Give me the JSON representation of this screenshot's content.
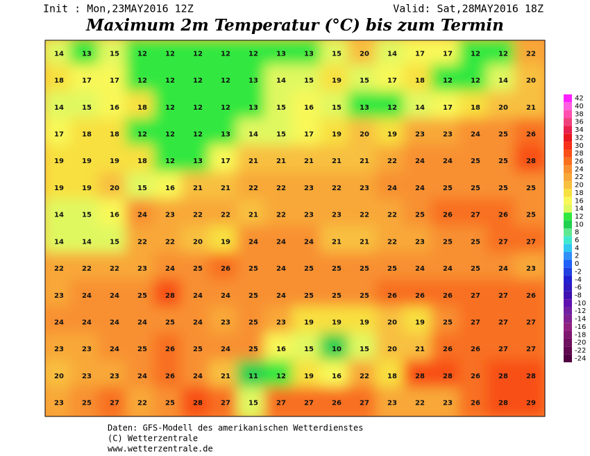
{
  "header": {
    "init": "Init : Mon,23MAY2016 12Z",
    "valid": "Valid: Sat,28MAY2016 18Z",
    "title": "Maximum 2m Temperatur (°C) bis zum Termin"
  },
  "map": {
    "values": [
      [
        14,
        13,
        15,
        12,
        12,
        12,
        12,
        12,
        13,
        13,
        15,
        20,
        14,
        17,
        17,
        12,
        12,
        22
      ],
      [
        18,
        17,
        17,
        12,
        12,
        12,
        12,
        13,
        14,
        15,
        19,
        15,
        17,
        18,
        12,
        12,
        14,
        20
      ],
      [
        14,
        15,
        16,
        18,
        12,
        12,
        12,
        13,
        15,
        16,
        15,
        13,
        12,
        14,
        17,
        18,
        20,
        21
      ],
      [
        17,
        18,
        18,
        12,
        12,
        12,
        13,
        14,
        15,
        17,
        19,
        20,
        19,
        23,
        23,
        24,
        25,
        26
      ],
      [
        19,
        19,
        19,
        18,
        12,
        13,
        17,
        21,
        21,
        21,
        21,
        21,
        22,
        24,
        24,
        25,
        25,
        28
      ],
      [
        19,
        19,
        20,
        15,
        16,
        21,
        21,
        22,
        22,
        23,
        22,
        23,
        24,
        24,
        25,
        25,
        25,
        25
      ],
      [
        14,
        15,
        16,
        24,
        23,
        22,
        22,
        21,
        22,
        23,
        23,
        22,
        22,
        25,
        26,
        27,
        26,
        25
      ],
      [
        14,
        14,
        15,
        22,
        22,
        20,
        19,
        24,
        24,
        24,
        21,
        21,
        22,
        23,
        25,
        25,
        27,
        27
      ],
      [
        22,
        22,
        22,
        23,
        24,
        25,
        26,
        25,
        24,
        25,
        25,
        25,
        25,
        24,
        24,
        25,
        24,
        23
      ],
      [
        23,
        24,
        24,
        25,
        28,
        24,
        24,
        25,
        24,
        25,
        25,
        25,
        26,
        26,
        26,
        27,
        27,
        26
      ],
      [
        24,
        24,
        24,
        24,
        25,
        24,
        23,
        25,
        23,
        19,
        19,
        19,
        20,
        19,
        25,
        27,
        27,
        27
      ],
      [
        23,
        23,
        24,
        25,
        26,
        25,
        24,
        25,
        16,
        15,
        10,
        15,
        20,
        21,
        26,
        26,
        27,
        27
      ],
      [
        20,
        23,
        23,
        24,
        26,
        24,
        21,
        11,
        12,
        19,
        16,
        22,
        18,
        28,
        28,
        26,
        28,
        28
      ],
      [
        23,
        25,
        27,
        22,
        25,
        28,
        27,
        15,
        27,
        27,
        26,
        27,
        23,
        22,
        23,
        26,
        28,
        29
      ]
    ]
  },
  "legend": {
    "ticks": [
      42,
      40,
      38,
      36,
      34,
      32,
      30,
      28,
      26,
      24,
      22,
      20,
      18,
      16,
      14,
      12,
      10,
      8,
      6,
      4,
      2,
      0,
      -2,
      -4,
      -6,
      -8,
      -10,
      -12,
      -14,
      -16,
      -18,
      -20,
      -22,
      -24
    ],
    "colors": [
      "#ff20ff",
      "#ff60e0",
      "#ff50b0",
      "#f0407c",
      "#e8204c",
      "#e81820",
      "#f83018",
      "#f85018",
      "#f87020",
      "#f89030",
      "#f8a838",
      "#f8c040",
      "#f8e040",
      "#f8f858",
      "#e0f860",
      "#30e840",
      "#20d050",
      "#60e890",
      "#40e8d0",
      "#30c8f0",
      "#3090f8",
      "#2060f8",
      "#2040e0",
      "#2020d0",
      "#3018c0",
      "#4010b0",
      "#6010b0",
      "#7020a0",
      "#802090",
      "#902080",
      "#801870",
      "#701060",
      "#600850",
      "#500040"
    ]
  },
  "footer": {
    "line1": "Daten: GFS-Modell des amerikanischen Wetterdienstes",
    "line2": "(C) Wetterzentrale",
    "line3": "www.wetterzentrale.de"
  }
}
